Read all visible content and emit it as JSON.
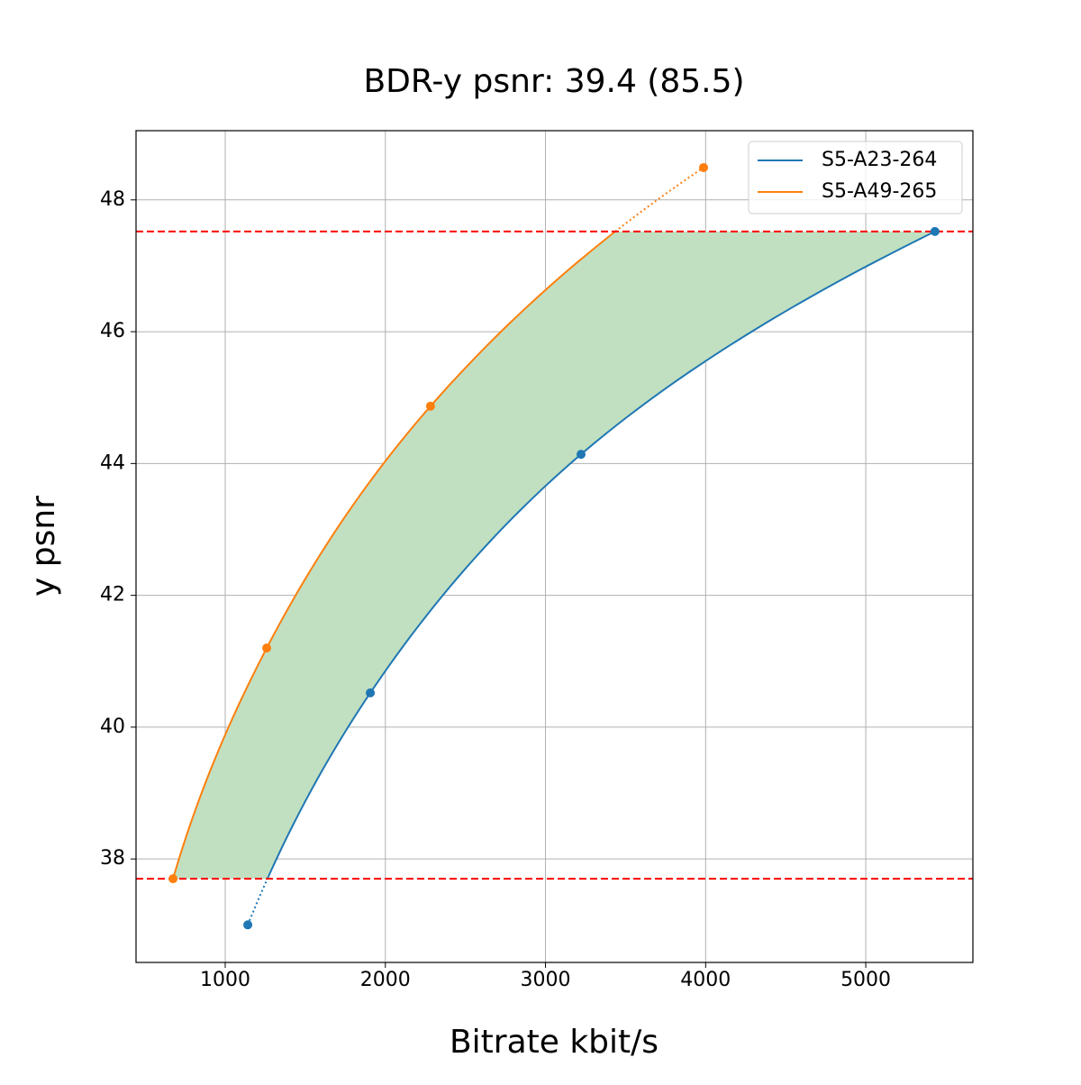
{
  "chart_data": {
    "type": "line",
    "title": "BDR-y psnr: 39.4 (85.5)",
    "x_label": "Bitrate kbit/s",
    "y_label": "y psnr",
    "series": [
      {
        "name": "S5-A23-264",
        "color": "#1f77b4",
        "x": [
          1141,
          1906,
          3222,
          5432
        ],
        "values": [
          37.0,
          40.52,
          44.14,
          47.52
        ]
      },
      {
        "name": "S5-A49-265",
        "color": "#ff7f0e",
        "x": [
          674,
          1259,
          2282,
          3987
        ],
        "values": [
          37.7,
          41.2,
          44.87,
          48.49
        ]
      }
    ],
    "xlim": [
      443,
      5669
    ],
    "ylim": [
      36.43,
      49.05
    ],
    "xticks": [
      1000,
      2000,
      3000,
      4000,
      5000
    ],
    "yticks": [
      38,
      40,
      42,
      44,
      46,
      48
    ],
    "grid": true,
    "legend": "upper right",
    "fill_color": "#c1e0c1",
    "threshold_color": "#ff0000"
  }
}
